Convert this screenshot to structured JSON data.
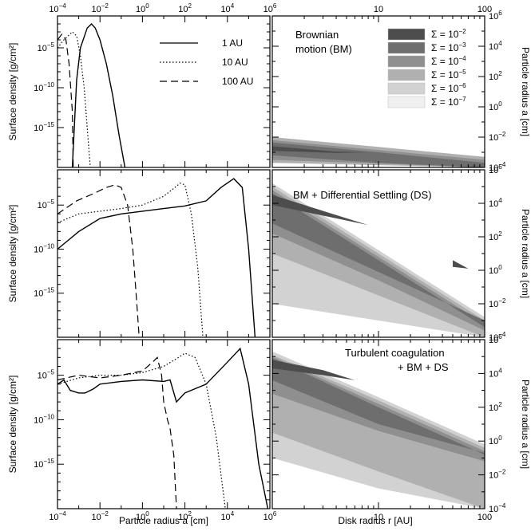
{
  "figure": {
    "left_ylabel": "Surface density [g/cm²]",
    "left_xlabel": "Particle radius a [cm]",
    "right_ylabel": "Particle radius a [cm]",
    "right_xlabel": "Disk radius r [AU]"
  },
  "chart_data": [
    {
      "type": "line",
      "panel": "left-1",
      "xscale": "log",
      "yscale": "log",
      "xlim": [
        0.0001,
        1000000
      ],
      "ylim": [
        1e-20,
        0.1
      ],
      "xticks": [
        0.0001,
        0.01,
        1,
        100,
        10000,
        1000000
      ],
      "yticks": [
        1e-15,
        1e-10,
        1e-05
      ],
      "series": [
        {
          "name": "1 AU",
          "style": "solid",
          "points": [
            [
              0.0005,
              1e-20
            ],
            [
              0.0008,
              1e-09
            ],
            [
              0.0012,
              1e-05
            ],
            [
              0.0025,
              0.003
            ],
            [
              0.004,
              0.01
            ],
            [
              0.006,
              0.003
            ],
            [
              0.01,
              0.0001
            ],
            [
              0.02,
              1e-07
            ],
            [
              0.04,
              1e-11
            ],
            [
              0.08,
              1e-16
            ],
            [
              0.15,
              1e-20
            ]
          ]
        },
        {
          "name": "10 AU",
          "style": "dotted",
          "points": [
            [
              0.0001,
              1e-05
            ],
            [
              0.0002,
              0.0001
            ],
            [
              0.0005,
              0.001
            ],
            [
              0.0008,
              0.0003
            ],
            [
              0.0012,
              1e-06
            ],
            [
              0.0018,
              1e-10
            ],
            [
              0.0025,
              1e-15
            ],
            [
              0.0035,
              1e-20
            ]
          ]
        },
        {
          "name": "100 AU",
          "style": "dashed",
          "points": [
            [
              0.0001,
              0.0001
            ],
            [
              0.00016,
              0.0005
            ],
            [
              0.00025,
              0.0001
            ],
            [
              0.00035,
              1e-07
            ],
            [
              0.0005,
              1e-13
            ],
            [
              0.00055,
              1e-20
            ]
          ]
        }
      ]
    },
    {
      "type": "line",
      "panel": "left-2",
      "xscale": "log",
      "yscale": "log",
      "xlim": [
        0.0001,
        1000000
      ],
      "ylim": [
        1e-20,
        0.1
      ],
      "xticks": [
        0.0001,
        0.01,
        1,
        100,
        10000,
        1000000
      ],
      "yticks": [
        1e-15,
        1e-10,
        1e-05
      ],
      "series": [
        {
          "name": "1 AU",
          "style": "solid",
          "points": [
            [
              0.0001,
              1e-10
            ],
            [
              0.001,
              1e-08
            ],
            [
              0.01,
              3e-07
            ],
            [
              0.1,
              1e-06
            ],
            [
              1,
              2e-06
            ],
            [
              10,
              4e-06
            ],
            [
              100,
              8e-06
            ],
            [
              1000,
              3e-05
            ],
            [
              5000,
              0.001
            ],
            [
              20000,
              0.01
            ],
            [
              50000,
              0.001
            ],
            [
              100000,
              1e-10
            ],
            [
              200000,
              1e-20
            ]
          ]
        },
        {
          "name": "10 AU",
          "style": "dotted",
          "points": [
            [
              0.0001,
              1e-07
            ],
            [
              0.001,
              1e-06
            ],
            [
              0.01,
              2e-06
            ],
            [
              0.1,
              4e-06
            ],
            [
              1,
              1e-05
            ],
            [
              10,
              0.0001
            ],
            [
              60,
              0.003
            ],
            [
              100,
              0.002
            ],
            [
              200,
              1e-06
            ],
            [
              400,
              1e-12
            ],
            [
              700,
              1e-20
            ]
          ]
        },
        {
          "name": "100 AU",
          "style": "dashed",
          "points": [
            [
              0.0001,
              1e-06
            ],
            [
              0.0008,
              3e-05
            ],
            [
              0.005,
              0.0002
            ],
            [
              0.02,
              0.001
            ],
            [
              0.05,
              0.002
            ],
            [
              0.1,
              0.001
            ],
            [
              0.2,
              1e-05
            ],
            [
              0.35,
              1e-10
            ],
            [
              0.5,
              1e-15
            ],
            [
              0.7,
              1e-20
            ]
          ]
        }
      ]
    },
    {
      "type": "line",
      "panel": "left-3",
      "xscale": "log",
      "yscale": "log",
      "xlim": [
        0.0001,
        1000000
      ],
      "ylim": [
        1e-20,
        0.1
      ],
      "xticks": [
        0.0001,
        0.01,
        1,
        100,
        10000,
        1000000
      ],
      "yticks": [
        1e-15,
        1e-10,
        1e-05
      ],
      "series": [
        {
          "name": "1 AU",
          "style": "solid",
          "points": [
            [
              0.0001,
              1e-06
            ],
            [
              0.0002,
              3e-06
            ],
            [
              0.0004,
              2e-07
            ],
            [
              0.001,
              1e-07
            ],
            [
              0.002,
              1e-07
            ],
            [
              0.005,
              3e-07
            ],
            [
              0.01,
              1e-06
            ],
            [
              0.1,
              2e-06
            ],
            [
              1,
              3e-06
            ],
            [
              10,
              2e-06
            ],
            [
              20,
              3e-06
            ],
            [
              40,
              1e-08
            ],
            [
              100,
              1e-07
            ],
            [
              1000,
              1e-06
            ],
            [
              10000,
              0.0003
            ],
            [
              40000,
              0.01
            ],
            [
              100000,
              1e-06
            ],
            [
              300000,
              1e-15
            ],
            [
              800000,
              1e-20
            ]
          ]
        },
        {
          "name": "10 AU",
          "style": "dotted",
          "points": [
            [
              0.0001,
              1e-06
            ],
            [
              0.001,
              5e-06
            ],
            [
              0.01,
              1e-05
            ],
            [
              0.1,
              1e-05
            ],
            [
              1,
              2e-05
            ],
            [
              10,
              0.0001
            ],
            [
              50,
              0.001
            ],
            [
              100,
              0.003
            ],
            [
              300,
              0.001
            ],
            [
              1000,
              1e-06
            ],
            [
              3000,
              1e-12
            ],
            [
              8000,
              1e-20
            ]
          ]
        },
        {
          "name": "100 AU",
          "style": "dashed",
          "points": [
            [
              0.0001,
              3e-06
            ],
            [
              0.001,
              1e-05
            ],
            [
              0.01,
              5e-06
            ],
            [
              0.1,
              1e-05
            ],
            [
              1,
              3e-05
            ],
            [
              3,
              0.0003
            ],
            [
              5,
              0.001
            ],
            [
              8,
              1e-05
            ],
            [
              10,
              1e-08
            ],
            [
              15,
              1e-10
            ],
            [
              20,
              1e-11
            ],
            [
              30,
              1e-14
            ],
            [
              40,
              1e-20
            ]
          ]
        }
      ]
    },
    {
      "type": "contour",
      "panel": "right-1",
      "xscale": "log",
      "yscale": "log",
      "xlim": [
        1,
        100
      ],
      "ylim": [
        0.0001,
        1000000
      ],
      "xticks": [
        10,
        100
      ],
      "yticks": [
        0.0001,
        0.01,
        1,
        100,
        10000,
        1000000
      ],
      "levels": [
        "10^-2",
        "10^-3",
        "10^-4",
        "10^-5",
        "10^-6",
        "10^-7"
      ],
      "bands": [
        {
          "level": "10^-5",
          "upper": [
            [
              1,
              -2.0
            ],
            [
              10,
              -2.65
            ],
            [
              100,
              -3.3
            ]
          ],
          "lower": [
            [
              1,
              -3.7
            ],
            [
              100,
              -4.0
            ]
          ]
        },
        {
          "level": "10^-4",
          "upper": [
            [
              1,
              -2.2
            ],
            [
              10,
              -2.85
            ],
            [
              100,
              -3.5
            ]
          ],
          "lower": [
            [
              1,
              -3.5
            ],
            [
              100,
              -4.0
            ]
          ]
        },
        {
          "level": "10^-3",
          "upper": [
            [
              1,
              -2.35
            ],
            [
              10,
              -3.0
            ],
            [
              100,
              -3.7
            ]
          ],
          "lower": [
            [
              1,
              -3.2
            ],
            [
              10,
              -3.7
            ],
            [
              100,
              -4.0
            ]
          ]
        },
        {
          "level": "10^-2",
          "upper": [
            [
              1,
              -2.6
            ],
            [
              4,
              -2.95
            ],
            [
              8,
              -3.0
            ]
          ],
          "lower": [
            [
              8,
              -3.0
            ],
            [
              4,
              -3.05
            ],
            [
              1,
              -2.9
            ]
          ]
        }
      ]
    },
    {
      "type": "contour",
      "panel": "right-2",
      "xscale": "log",
      "yscale": "log",
      "xlim": [
        1,
        100
      ],
      "ylim": [
        0.0001,
        1000000
      ],
      "xticks": [
        10,
        100
      ],
      "yticks": [
        0.0001,
        0.01,
        1,
        100,
        10000,
        1000000
      ],
      "bands": [
        {
          "level": "10^-6",
          "upper": [
            [
              1,
              5.2
            ],
            [
              10,
              1.2
            ],
            [
              100,
              -2.8
            ]
          ],
          "lower": [
            [
              1,
              -2.0
            ],
            [
              10,
              -3.0
            ],
            [
              100,
              -4.0
            ]
          ]
        },
        {
          "level": "10^-5",
          "upper": [
            [
              1,
              5.0
            ],
            [
              10,
              1.0
            ],
            [
              100,
              -3.0
            ]
          ],
          "lower": [
            [
              1,
              1.0
            ],
            [
              10,
              -1.5
            ],
            [
              100,
              -4.0
            ]
          ]
        },
        {
          "level": "10^-4",
          "upper": [
            [
              1,
              4.8
            ],
            [
              10,
              0.8
            ],
            [
              100,
              -3.2
            ]
          ],
          "lower": [
            [
              1,
              2.2
            ],
            [
              10,
              -0.6
            ],
            [
              100,
              -3.6
            ]
          ]
        },
        {
          "level": "10^-3",
          "upper": [
            [
              1,
              4.6
            ],
            [
              10,
              0.6
            ],
            [
              100,
              -3.4
            ]
          ],
          "lower": [
            [
              1,
              2.8
            ],
            [
              10,
              -0.1
            ],
            [
              100,
              -3.0
            ]
          ]
        },
        {
          "level": "10^-2",
          "upper": [
            [
              1,
              4.5
            ],
            [
              4,
              3.3
            ],
            [
              8,
              2.7
            ]
          ],
          "lower": [
            [
              8,
              2.7
            ],
            [
              4,
              3.1
            ],
            [
              1,
              3.9
            ]
          ]
        },
        {
          "level": "10^-2",
          "upper": [
            [
              50,
              0.6
            ],
            [
              70,
              0.1
            ]
          ],
          "lower": [
            [
              70,
              0.1
            ],
            [
              50,
              0.2
            ]
          ]
        }
      ]
    },
    {
      "type": "contour",
      "panel": "right-3",
      "xscale": "log",
      "yscale": "log",
      "xlim": [
        1,
        100
      ],
      "ylim": [
        0.0001,
        1000000
      ],
      "xticks": [
        10,
        100
      ],
      "yticks": [
        0.0001,
        0.01,
        1,
        100,
        10000,
        1000000
      ],
      "bands": [
        {
          "level": "10^-6",
          "upper": [
            [
              1,
              5.3
            ],
            [
              10,
              2.6
            ],
            [
              100,
              -0.2
            ]
          ],
          "lower": [
            [
              1,
              -1.0
            ],
            [
              10,
              -2.8
            ],
            [
              100,
              -4.0
            ]
          ]
        },
        {
          "level": "10^-5",
          "upper": [
            [
              1,
              5.1
            ],
            [
              10,
              2.4
            ],
            [
              100,
              -0.4
            ]
          ],
          "lower": [
            [
              1,
              0.5
            ],
            [
              3,
              -0.6
            ],
            [
              10,
              -1.8
            ],
            [
              100,
              -4.0
            ]
          ]
        },
        {
          "level": "10^-4",
          "upper": [
            [
              1,
              5.0
            ],
            [
              10,
              2.2
            ],
            [
              100,
              -0.6
            ]
          ],
          "lower": [
            [
              1,
              2.8
            ],
            [
              10,
              0.6
            ],
            [
              100,
              -1.2
            ]
          ]
        },
        {
          "level": "10^-3",
          "upper": [
            [
              1,
              4.9
            ],
            [
              10,
              2.0
            ],
            [
              100,
              -0.8
            ]
          ],
          "lower": [
            [
              1,
              3.6
            ],
            [
              10,
              1.0
            ],
            [
              100,
              -0.7
            ]
          ]
        },
        {
          "level": "10^-2",
          "upper": [
            [
              1,
              4.8
            ],
            [
              3,
              4.2
            ],
            [
              6,
              3.6
            ]
          ],
          "lower": [
            [
              6,
              3.6
            ],
            [
              3,
              3.9
            ],
            [
              1,
              4.3
            ]
          ]
        }
      ]
    }
  ],
  "legend_left": {
    "entries": [
      "1 AU",
      "10 AU",
      "100 AU"
    ]
  },
  "legend_right": {
    "symbol": "Σ =",
    "entries": [
      {
        "base": "10",
        "exp": "−2",
        "color": "#4d4d4d"
      },
      {
        "base": "10",
        "exp": "−3",
        "color": "#6e6e6e"
      },
      {
        "base": "10",
        "exp": "−4",
        "color": "#8f8f8f"
      },
      {
        "base": "10",
        "exp": "−5",
        "color": "#b0b0b0"
      },
      {
        "base": "10",
        "exp": "−6",
        "color": "#d2d2d2"
      },
      {
        "base": "10",
        "exp": "−7",
        "color": "#f0f0f0"
      }
    ]
  },
  "annotations": {
    "right1_line1": "Brownian",
    "right1_line2": "motion (BM)",
    "right2": "BM + Differential Settling (DS)",
    "right3_line1": "Turbulent coagulation",
    "right3_line2": "+ BM + DS"
  },
  "tick_labels": {
    "left_x_exps": [
      "−4",
      "−2",
      "0",
      "2",
      "4",
      "6"
    ],
    "left_y_exps": [
      "−5",
      "−10",
      "−15"
    ],
    "right_x": [
      "10",
      "100"
    ],
    "right_y_exps": [
      "6",
      "4",
      "2",
      "0",
      "−2",
      "−4"
    ]
  }
}
